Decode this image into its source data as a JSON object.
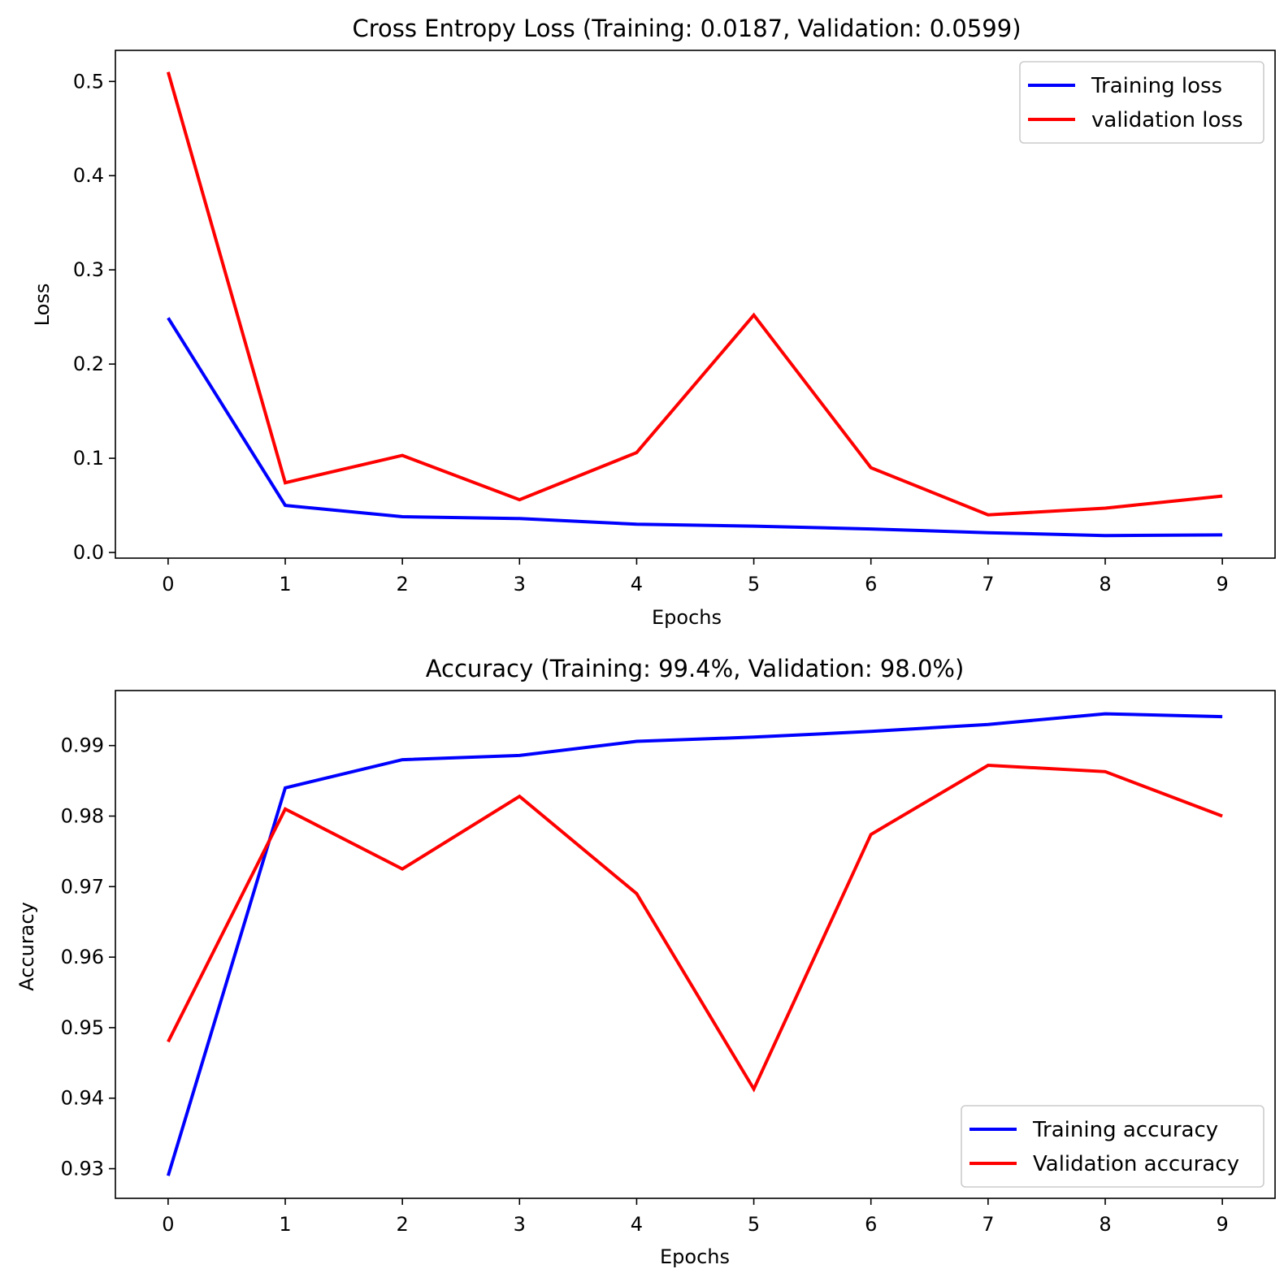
{
  "chart_data": [
    {
      "type": "line",
      "title": "Cross Entropy Loss (Training: 0.0187, Validation: 0.0599)",
      "xlabel": "Epochs",
      "ylabel": "Loss",
      "x": [
        0,
        1,
        2,
        3,
        4,
        5,
        6,
        7,
        8,
        9
      ],
      "xlim": [
        -0.45,
        9.45
      ],
      "ylim": [
        -0.006,
        0.533
      ],
      "xticks": [
        0,
        1,
        2,
        3,
        4,
        5,
        6,
        7,
        8,
        9
      ],
      "yticks": [
        0.0,
        0.1,
        0.2,
        0.3,
        0.4,
        0.5
      ],
      "ytick_labels": [
        "0.0",
        "0.1",
        "0.2",
        "0.3",
        "0.4",
        "0.5"
      ],
      "grid": false,
      "legend_loc": "upper right",
      "series": [
        {
          "name": "Training loss",
          "color": "#0000ff",
          "values": [
            0.249,
            0.05,
            0.038,
            0.036,
            0.03,
            0.028,
            0.025,
            0.021,
            0.018,
            0.0187
          ]
        },
        {
          "name": "validation loss",
          "color": "#ff0000",
          "values": [
            0.51,
            0.074,
            0.103,
            0.056,
            0.106,
            0.252,
            0.09,
            0.04,
            0.047,
            0.0599
          ]
        }
      ]
    },
    {
      "type": "line",
      "title": "Accuracy (Training: 99.4%, Validation: 98.0%)",
      "xlabel": "Epochs",
      "ylabel": "Accuracy",
      "x": [
        0,
        1,
        2,
        3,
        4,
        5,
        6,
        7,
        8,
        9
      ],
      "xlim": [
        -0.45,
        9.45
      ],
      "ylim": [
        0.9258,
        0.9978
      ],
      "xticks": [
        0,
        1,
        2,
        3,
        4,
        5,
        6,
        7,
        8,
        9
      ],
      "yticks": [
        0.93,
        0.94,
        0.95,
        0.96,
        0.97,
        0.98,
        0.99
      ],
      "ytick_labels": [
        "0.93",
        "0.94",
        "0.95",
        "0.96",
        "0.97",
        "0.98",
        "0.99"
      ],
      "grid": false,
      "legend_loc": "lower right",
      "series": [
        {
          "name": "Training accuracy",
          "color": "#0000ff",
          "values": [
            0.929,
            0.984,
            0.988,
            0.9886,
            0.9906,
            0.9912,
            0.992,
            0.993,
            0.9945,
            0.9941
          ]
        },
        {
          "name": "Validation accuracy",
          "color": "#ff0000",
          "values": [
            0.948,
            0.981,
            0.9725,
            0.9828,
            0.969,
            0.9413,
            0.9774,
            0.9872,
            0.9863,
            0.98
          ]
        }
      ]
    }
  ]
}
